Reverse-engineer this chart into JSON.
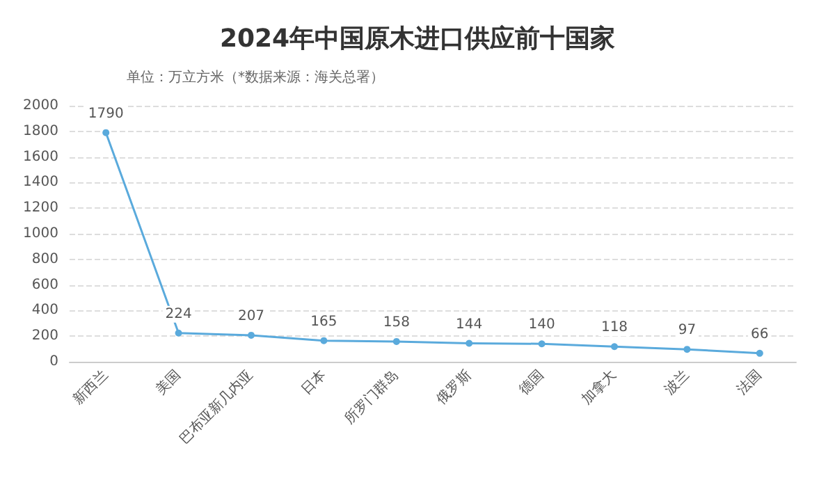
{
  "chart_data": {
    "type": "line",
    "title": "2024年中国原木进口供应前十国家",
    "subtitle": "单位：万立方米（*数据来源：海关总署）",
    "categories": [
      "新西兰",
      "美国",
      "巴布亚新几内亚",
      "日本",
      "所罗门群岛",
      "俄罗斯",
      "德国",
      "加拿大",
      "波兰",
      "法国"
    ],
    "series": [
      {
        "color": "#5aaadc",
        "values": [
          1790,
          224,
          207,
          165,
          158,
          144,
          140,
          118,
          97,
          66
        ]
      }
    ],
    "ylim": [
      0,
      2000
    ],
    "yticks": [
      0,
      200,
      400,
      600,
      800,
      1000,
      1200,
      1400,
      1600,
      1800,
      2000
    ],
    "grid": "y",
    "data_labels": true,
    "marker": "circle",
    "line_style": "solid"
  }
}
